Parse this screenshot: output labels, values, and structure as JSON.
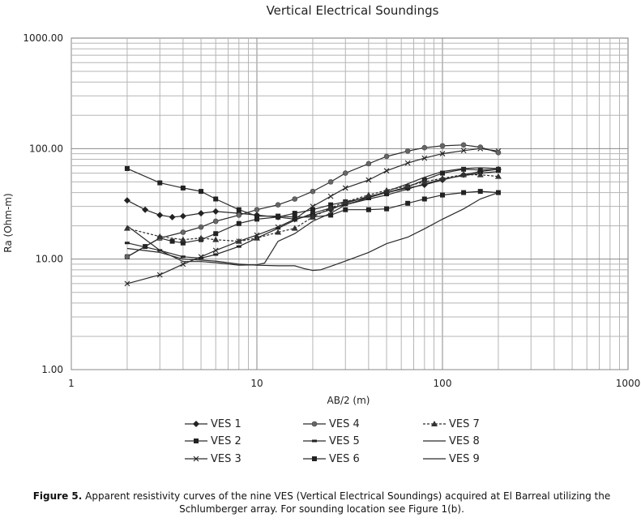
{
  "chart_data": {
    "type": "line",
    "title": "Vertical Electrical Soundings",
    "xlabel": "AB/2 (m)",
    "ylabel": "Ra (Ohm-m)",
    "xscale": "log",
    "yscale": "log",
    "xlim": [
      1,
      1000
    ],
    "ylim": [
      1,
      1000
    ],
    "x_tick_labels": [
      "1",
      "10",
      "100",
      "1000"
    ],
    "y_tick_labels": [
      "1.00",
      "10.00",
      "100.00",
      "1000.00"
    ],
    "grid": true,
    "legend_position": "bottom",
    "series": [
      {
        "name": "VES 1",
        "marker": "diamond",
        "dash": "solid",
        "x": [
          2,
          2.5,
          3,
          3.5,
          4,
          5,
          6,
          8,
          10,
          13,
          16,
          20,
          25,
          30,
          40,
          50,
          65,
          80,
          100,
          130,
          160,
          200
        ],
        "y": [
          34,
          28,
          25,
          24,
          24.5,
          26,
          27,
          26,
          25,
          24,
          23,
          25,
          28,
          32,
          37,
          40,
          44,
          47,
          52,
          58,
          62,
          65
        ]
      },
      {
        "name": "VES 2",
        "marker": "square",
        "dash": "solid",
        "x": [
          2,
          2.5,
          3,
          3.5,
          4,
          5,
          6,
          8,
          10,
          13,
          16,
          20,
          25,
          30,
          40,
          50,
          65,
          80,
          100,
          130,
          160,
          200
        ],
        "y": [
          10.5,
          13,
          15.5,
          14.5,
          14,
          15,
          17,
          21,
          23,
          24,
          26,
          28,
          31,
          33,
          36,
          40,
          45,
          52,
          60,
          65,
          64,
          65
        ]
      },
      {
        "name": "VES 3",
        "marker": "x",
        "dash": "solid",
        "x": [
          2,
          3,
          4,
          5,
          6,
          8,
          10,
          13,
          16,
          20,
          25,
          30,
          40,
          50,
          65,
          80,
          100,
          130,
          160,
          200
        ],
        "y": [
          6,
          7.2,
          9,
          10.5,
          12,
          14.5,
          16.5,
          19.5,
          23,
          30,
          37,
          44,
          52,
          63,
          74,
          82,
          90,
          96,
          100,
          95
        ]
      },
      {
        "name": "VES 4",
        "marker": "circle",
        "dash": "solid",
        "x": [
          2,
          3,
          4,
          5,
          6,
          8,
          10,
          13,
          16,
          20,
          25,
          30,
          40,
          50,
          65,
          80,
          100,
          130,
          160,
          200
        ],
        "y": [
          10.5,
          15.5,
          17.5,
          19.5,
          22,
          25,
          28,
          31,
          35,
          41,
          50,
          60,
          73,
          85,
          95,
          102,
          106,
          108,
          103,
          92
        ]
      },
      {
        "name": "VES 5",
        "marker": "dash",
        "dash": "solid",
        "x": [
          2,
          3,
          4,
          5,
          6,
          8,
          10,
          13,
          16,
          20,
          25,
          30,
          40,
          50,
          65,
          80,
          100,
          130,
          160,
          200
        ],
        "y": [
          14,
          12,
          10.5,
          10.2,
          11,
          13,
          15.5,
          19,
          22.5,
          26,
          29,
          31,
          35,
          38,
          43,
          48,
          53,
          57,
          60,
          62
        ]
      },
      {
        "name": "VES 6",
        "marker": "square",
        "dash": "solid",
        "x": [
          2,
          3,
          4,
          5,
          6,
          8,
          10,
          13,
          16,
          20,
          25,
          30,
          40,
          50,
          65,
          80,
          100,
          130,
          160,
          200
        ],
        "y": [
          66,
          49,
          44,
          41,
          35,
          28,
          24.5,
          24.5,
          24,
          24,
          25,
          28,
          28,
          28.5,
          32,
          35,
          38,
          40,
          41,
          40
        ]
      },
      {
        "name": "VES 7",
        "marker": "triangle",
        "dash": "dashed",
        "x": [
          2,
          3,
          4,
          5,
          6,
          8,
          10,
          13,
          16,
          20,
          25,
          30,
          40,
          50,
          65,
          80,
          100,
          130,
          160,
          200
        ],
        "y": [
          19,
          16,
          15,
          15.5,
          15,
          14.5,
          15.5,
          17.5,
          19,
          24,
          29,
          33,
          38,
          42,
          46,
          50,
          54,
          58,
          58,
          56
        ]
      },
      {
        "name": "VES 8",
        "marker": "none",
        "dash": "solid",
        "x": [
          2,
          3,
          4,
          5,
          6,
          8,
          10,
          11,
          13,
          16,
          20,
          25,
          30,
          40,
          50,
          65,
          80,
          100,
          130,
          160,
          200
        ],
        "y": [
          20,
          12,
          9.5,
          9.5,
          9.3,
          8.8,
          8.9,
          9.2,
          14.5,
          17,
          22,
          26,
          31,
          36,
          41,
          48,
          55,
          62,
          66,
          67,
          66
        ]
      },
      {
        "name": "VES 9",
        "marker": "none",
        "dash": "solid",
        "x": [
          2,
          3,
          4,
          5,
          6,
          8,
          10,
          13,
          16,
          18,
          20,
          22,
          25,
          30,
          40,
          50,
          65,
          80,
          100,
          130,
          160,
          200
        ],
        "y": [
          12.5,
          11.5,
          10,
          9.8,
          9.6,
          9.0,
          8.8,
          8.7,
          8.7,
          8.2,
          7.9,
          8.0,
          8.6,
          9.6,
          11.5,
          13.8,
          15.8,
          18.8,
          23,
          28.5,
          35,
          40
        ]
      }
    ]
  },
  "caption": {
    "label": "Figure 5.",
    "text": "Apparent resistivity curves of the nine VES (Vertical Electrical Soundings) acquired at El Barreal utilizing the Schlumberger  array. For sounding location see Figure 1(b)."
  }
}
